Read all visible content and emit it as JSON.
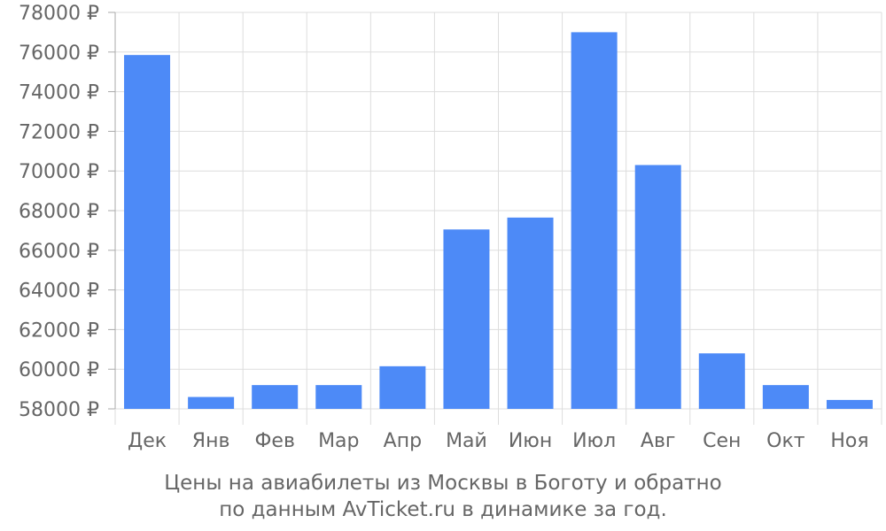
{
  "chart_data": {
    "type": "bar",
    "categories": [
      "Дек",
      "Янв",
      "Фев",
      "Мар",
      "Апр",
      "Май",
      "Июн",
      "Июл",
      "Авг",
      "Сен",
      "Окт",
      "Ноя"
    ],
    "values": [
      75850,
      58600,
      59200,
      59200,
      60150,
      67050,
      67650,
      77000,
      70300,
      60800,
      59200,
      58450
    ],
    "ylim": [
      58000,
      78000
    ],
    "yticks": [
      58000,
      60000,
      62000,
      64000,
      66000,
      68000,
      70000,
      72000,
      74000,
      76000,
      78000
    ],
    "currency_suffix": " ₽",
    "grid": true,
    "colors": {
      "bar": "#4d8af7",
      "grid": "#dddddd",
      "axis": "#aaaaaa",
      "text": "#666666"
    }
  },
  "caption": {
    "line1": "Цены на авиабилеты из Москвы в Боготу и обратно",
    "line2": "по данным AvTicket.ru в динамике за год."
  }
}
